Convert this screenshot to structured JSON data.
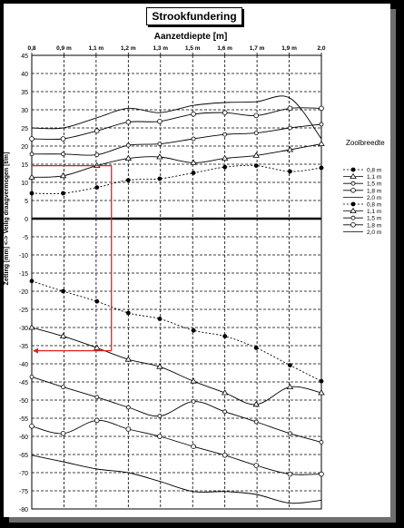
{
  "title": "Strookfundering",
  "legend": {
    "title": "Zoolbreedte",
    "entries": [
      {
        "label": "0,8 m",
        "style": "dotted",
        "marker": "filled-circle"
      },
      {
        "label": "1,1 m",
        "style": "solid",
        "marker": "triangle"
      },
      {
        "label": "1,5 m",
        "style": "solid",
        "marker": "diamond"
      },
      {
        "label": "1,8 m",
        "style": "solid",
        "marker": "open-circle"
      },
      {
        "label": "2,0 m",
        "style": "solid",
        "marker": "none"
      },
      {
        "label": "0,8 m",
        "style": "dotted",
        "marker": "filled-circle"
      },
      {
        "label": "1,1 m",
        "style": "solid",
        "marker": "triangle"
      },
      {
        "label": "1,5 m",
        "style": "solid",
        "marker": "diamond"
      },
      {
        "label": "1,8 m",
        "style": "solid",
        "marker": "open-circle"
      },
      {
        "label": "2,0 m",
        "style": "solid",
        "marker": "none"
      }
    ]
  },
  "chart_data": {
    "type": "line",
    "title": "Strookfundering",
    "xlabel": "Aanzetdiepte [m]",
    "ylabel": "Zetting [mm] <-> Veilig draagvermogen [t/m]",
    "x_ticks": [
      "0,8",
      "0,9 m",
      "1,1 m",
      "1,2 m",
      "1,3 m",
      "1,5 m",
      "1,6 m",
      "1,7 m",
      "1,9 m",
      "2,0"
    ],
    "xlim": [
      0.8,
      2.0
    ],
    "ylim": [
      -80,
      45
    ],
    "y_ticks": [
      45,
      40,
      35,
      30,
      25,
      20,
      15,
      10,
      5,
      0,
      -5,
      -10,
      -15,
      -20,
      -25,
      -30,
      -35,
      -40,
      -45,
      -50,
      -55,
      -60,
      -65,
      -70,
      -75,
      -80
    ],
    "grid": true,
    "legend_position": "right",
    "zero_line": true,
    "series_group_1_label": "Veilig draagvermogen",
    "series_group_2_label": "Zetting",
    "series": [
      {
        "name": "0,8 m",
        "group": "draagvermogen",
        "marker": "filled-circle",
        "dash": true,
        "x": [
          0.8,
          0.93,
          1.07,
          1.2,
          1.33,
          1.47,
          1.6,
          1.73,
          1.87,
          2.0
        ],
        "y": [
          7,
          7,
          8.6,
          10.6,
          11,
          12.6,
          14.2,
          14.6,
          13,
          14
        ]
      },
      {
        "name": "1,1 m",
        "group": "draagvermogen",
        "marker": "triangle",
        "x": [
          0.8,
          0.93,
          1.07,
          1.2,
          1.33,
          1.47,
          1.6,
          1.73,
          1.87,
          2.0
        ],
        "y": [
          11.4,
          11.8,
          14.6,
          16.6,
          17,
          15.4,
          16.6,
          17.4,
          19,
          20.6
        ]
      },
      {
        "name": "1,5 m",
        "group": "draagvermogen",
        "marker": "diamond",
        "x": [
          0.8,
          0.93,
          1.07,
          1.2,
          1.33,
          1.47,
          1.6,
          1.73,
          1.87,
          2.0
        ],
        "y": [
          17.8,
          17.8,
          17.6,
          20.2,
          20.6,
          22,
          23.2,
          23.6,
          25,
          26
        ]
      },
      {
        "name": "1,8 m",
        "group": "draagvermogen",
        "marker": "open-circle",
        "x": [
          0.8,
          0.93,
          1.07,
          1.2,
          1.33,
          1.47,
          1.6,
          1.73,
          1.87,
          2.0
        ],
        "y": [
          22,
          22,
          24.2,
          26.6,
          26.8,
          28.8,
          29.2,
          28.4,
          30.4,
          30.4
        ]
      },
      {
        "name": "2,0 m",
        "group": "draagvermogen",
        "marker": "none",
        "x": [
          0.8,
          0.93,
          1.07,
          1.2,
          1.33,
          1.47,
          1.6,
          1.73,
          1.87,
          2.0
        ],
        "y": [
          25,
          25,
          27.8,
          30.4,
          29.2,
          31.2,
          32,
          32.2,
          33.2,
          22
        ]
      },
      {
        "name": "0,8 m",
        "group": "zetting",
        "marker": "filled-circle",
        "dash": true,
        "x": [
          0.8,
          0.93,
          1.07,
          1.2,
          1.33,
          1.47,
          1.6,
          1.73,
          1.87,
          2.0
        ],
        "y": [
          -17.2,
          -20,
          -22.8,
          -26,
          -27.6,
          -30.8,
          -32.4,
          -35.6,
          -40.4,
          -44.8
        ]
      },
      {
        "name": "1,1 m",
        "group": "zetting",
        "marker": "triangle",
        "x": [
          0.8,
          0.93,
          1.07,
          1.2,
          1.33,
          1.47,
          1.6,
          1.73,
          1.87,
          2.0
        ],
        "y": [
          -30,
          -32.4,
          -35.6,
          -38.8,
          -40.8,
          -44.8,
          -48,
          -51.2,
          -46.4,
          -48
        ]
      },
      {
        "name": "1,5 m",
        "group": "zetting",
        "marker": "diamond",
        "x": [
          0.8,
          0.93,
          1.07,
          1.2,
          1.33,
          1.47,
          1.6,
          1.73,
          1.87,
          2.0
        ],
        "y": [
          -43.6,
          -46.4,
          -49.2,
          -52,
          -54.4,
          -50.4,
          -53.2,
          -56,
          -59.2,
          -61.6
        ]
      },
      {
        "name": "1,8 m",
        "group": "zetting",
        "marker": "open-circle",
        "x": [
          0.8,
          0.93,
          1.07,
          1.2,
          1.33,
          1.47,
          1.6,
          1.73,
          1.87,
          2.0
        ],
        "y": [
          -57.2,
          -59.2,
          -55.6,
          -58,
          -60,
          -62.8,
          -65.2,
          -68,
          -70.4,
          -70.4
        ]
      },
      {
        "name": "2,0 m",
        "group": "zetting",
        "marker": "none",
        "x": [
          0.8,
          0.93,
          1.07,
          1.2,
          1.33,
          1.47,
          1.6,
          1.73,
          1.87,
          2.0
        ],
        "y": [
          -65.2,
          -67,
          -69,
          -70,
          -72.4,
          -75.2,
          -75.2,
          -76,
          -78.4,
          -77.6
        ]
      }
    ],
    "annotation": {
      "color": "#e02020",
      "draagvermogen_value": 14.6,
      "aanzetdiepte_value": 1.13,
      "zetting_value": -36.4
    }
  }
}
